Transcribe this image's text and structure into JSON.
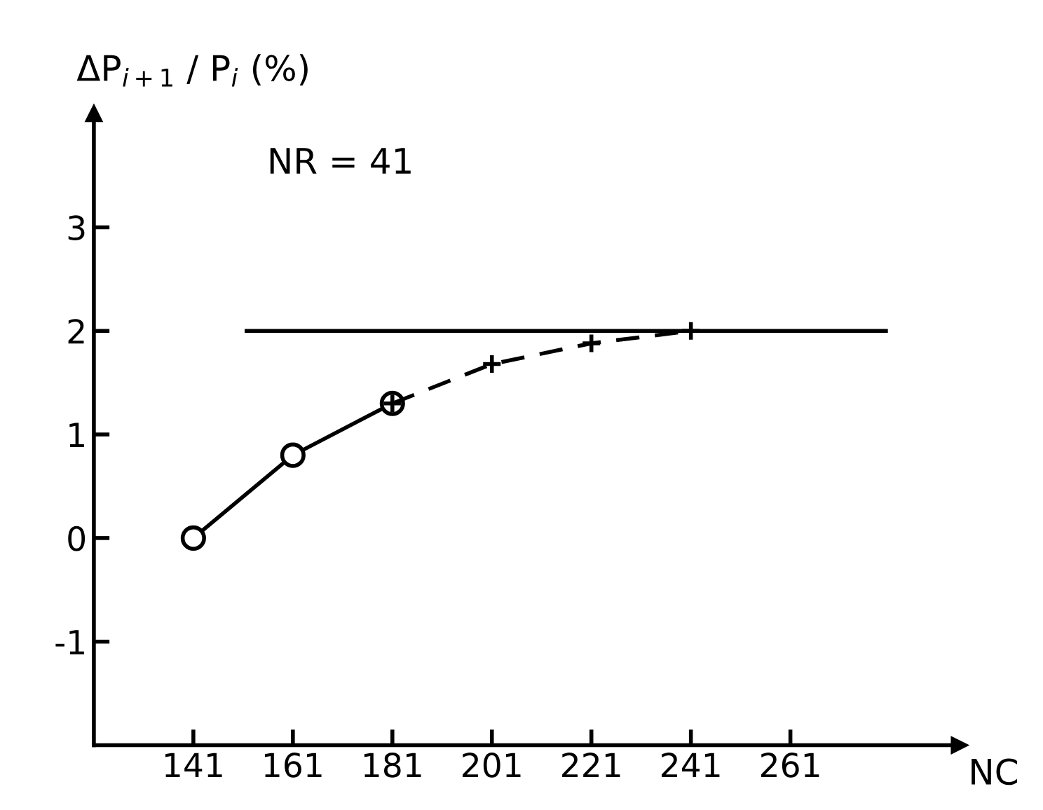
{
  "chart_data": {
    "type": "line",
    "ylabel": "ΔP$_{i+1}$ / P$_{i}$ (%)",
    "xlabel": "NC",
    "xlim": [
      121,
      295
    ],
    "ylim": [
      -2,
      4.1
    ],
    "xticks": [
      141,
      161,
      181,
      201,
      221,
      241,
      261
    ],
    "yticks": [
      -1,
      0,
      1,
      2,
      3
    ],
    "grid": false,
    "legend": false,
    "series": [
      {
        "x": [
          141,
          161,
          181
        ],
        "values": [
          0,
          0.8,
          1.3
        ],
        "color": "#000000",
        "marker": "circle",
        "line_style": "solid"
      },
      {
        "x": [
          181,
          201,
          221,
          241
        ],
        "values": [
          1.3,
          1.68,
          1.88,
          2.0
        ],
        "color": "#000000",
        "marker": "cross",
        "line_style": "dashed"
      },
      {
        "x": [
          151.7,
          280.2
        ],
        "values": [
          2,
          2
        ],
        "color": "#000000",
        "marker": "none",
        "line_style": "solid"
      }
    ],
    "annotations": [
      "NR = 41"
    ]
  }
}
